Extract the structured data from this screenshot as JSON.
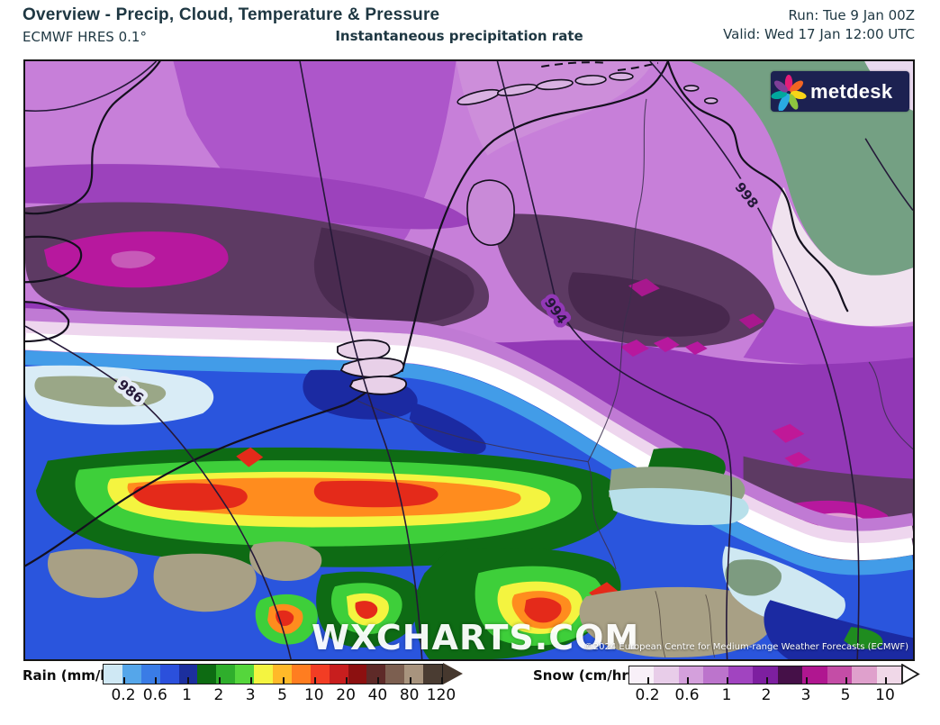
{
  "header": {
    "title": "Overview - Precip, Cloud, Temperature & Pressure",
    "model": "ECMWF HRES 0.1°",
    "subtitle": "Instantaneous precipitation rate",
    "run": "Run: Tue 9 Jan 00Z",
    "valid": "Valid: Wed 17 Jan 12:00 UTC"
  },
  "map": {
    "watermark": "WXCHARTS.COM",
    "copyright": "©2024 European Centre for Medium-range Weather Forecasts (ECMWF)",
    "logo_text": "metdesk",
    "isobar_labels": {
      "i998": "998",
      "i994": "994",
      "i986": "986"
    }
  },
  "legend": {
    "rain": {
      "label": "Rain (mm/hr)",
      "ticks": [
        "0.2",
        "0.6",
        "1",
        "2",
        "3",
        "5",
        "10",
        "20",
        "40",
        "80",
        "120"
      ],
      "colors": [
        "#cfe8f4",
        "#55a6ea",
        "#3a7ce6",
        "#2b50dc",
        "#1c2f9e",
        "#0d6b12",
        "#2fae2c",
        "#55d63c",
        "#f4f440",
        "#ffb929",
        "#ff7d20",
        "#f23d24",
        "#c81e1e",
        "#8c1010",
        "#5e2a28",
        "#7c5f50",
        "#a8947e",
        "#4a3c32"
      ]
    },
    "snow": {
      "label": "Snow (cm/hr)",
      "ticks": [
        "0.2",
        "0.6",
        "1",
        "2",
        "3",
        "5",
        "10"
      ],
      "colors": [
        "#f8f0f8",
        "#e8cde9",
        "#d4a0dc",
        "#bc74cc",
        "#a144c0",
        "#7d1fa0",
        "#451048",
        "#b01690",
        "#c44da6",
        "#dfa0cc",
        "#f0d8e8"
      ]
    }
  },
  "colors": {
    "snow_magenta": "#b7189e",
    "land_green": "#74a083",
    "sea_snow_purple": "#c77fd9",
    "rain_blue": "#2a55dd"
  }
}
